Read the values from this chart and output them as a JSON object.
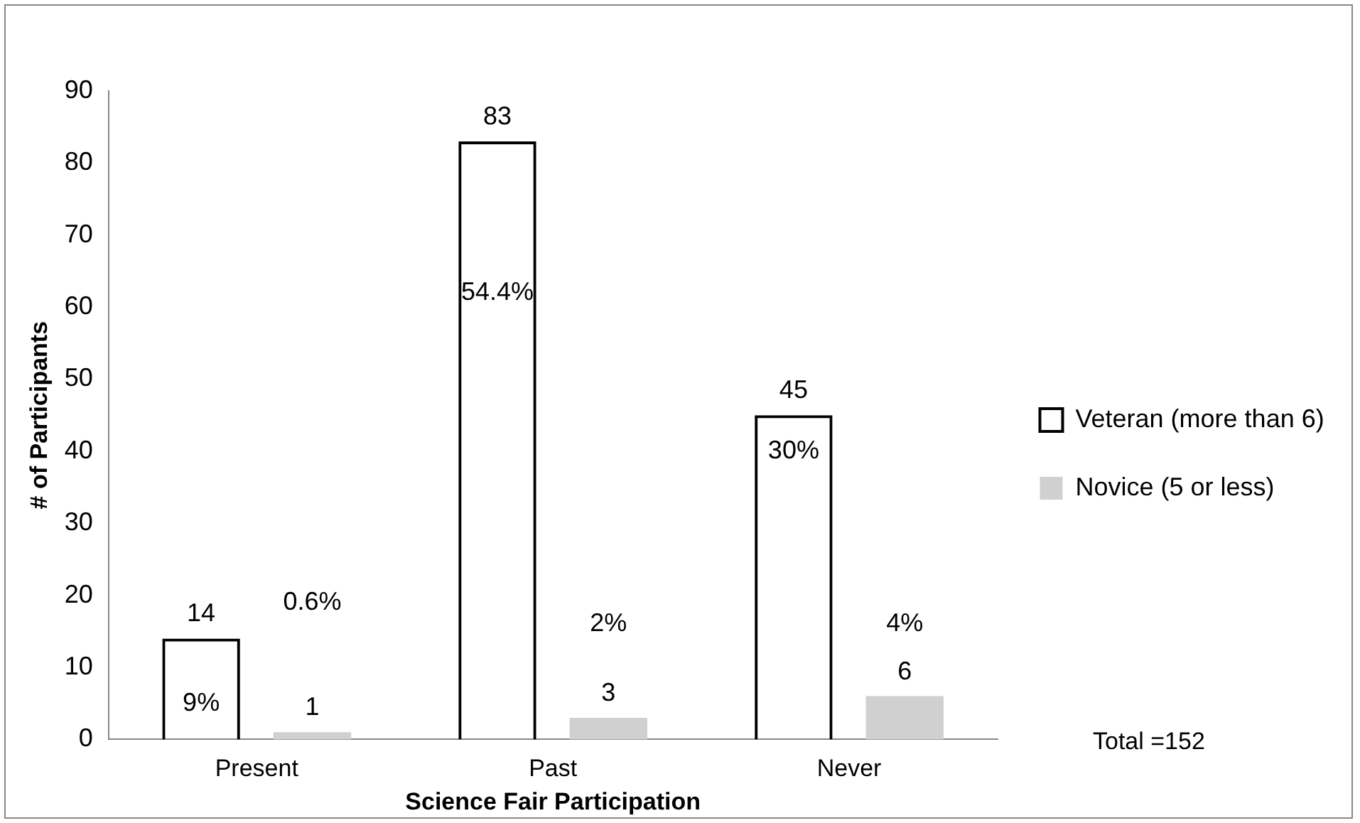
{
  "chart_data": {
    "type": "bar",
    "xlabel": "Science Fair Participation",
    "ylabel": "# of Participants",
    "categories": [
      "Present",
      "Past",
      "Never"
    ],
    "series": [
      {
        "name": "Veteran (more than 6)",
        "color": "#000000",
        "values": [
          14,
          83,
          45
        ]
      },
      {
        "name": "Novice (5 or less)",
        "color": "#d0d0d0",
        "values": [
          1,
          3,
          6
        ]
      }
    ],
    "ylim": [
      0,
      90
    ],
    "yticks": [
      0,
      10,
      20,
      30,
      40,
      50,
      60,
      70,
      80,
      90
    ],
    "grid": false,
    "legend": "right",
    "data_labels": true,
    "annotations": [
      "9%",
      "0.6%",
      "54.4%",
      "2%",
      "30%",
      "4%",
      "Total =152"
    ]
  }
}
